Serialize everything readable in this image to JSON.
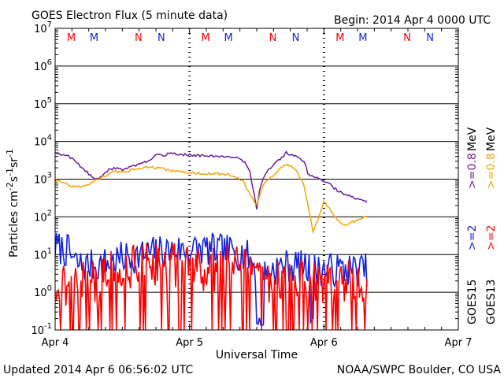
{
  "header": {
    "title": "GOES Electron Flux (5 minute data)",
    "begin": "Begin: 2014 Apr 4 0000 UTC"
  },
  "footer": {
    "updated": "Updated 2014 Apr  6 06:56:02 UTC",
    "credit": "NOAA/SWPC Boulder, CO USA"
  },
  "colors": {
    "purple": "#6a1b9a",
    "orange": "#f5a300",
    "blue": "#1020e0",
    "red": "#ff0000",
    "grid": "#000000"
  },
  "chart_data": {
    "type": "line",
    "title": "GOES Electron Flux (5 minute data)",
    "xlabel": "Universal Time",
    "ylabel_parts": {
      "base": "Particles cm",
      "exp1": "-2",
      "mid1": "s",
      "exp2": "-1",
      "mid2": "sr",
      "exp3": "-1"
    },
    "x_unit": "days since 2014 Apr 4 0000 UTC",
    "xlim": [
      0,
      3
    ],
    "ylim": [
      0.1,
      10000000
    ],
    "log_y": true,
    "x_ticks": [
      {
        "x": 0,
        "label": "Apr 4"
      },
      {
        "x": 1,
        "label": "Apr 5"
      },
      {
        "x": 2,
        "label": "Apr 6"
      },
      {
        "x": 3,
        "label": "Apr 7"
      }
    ],
    "y_ticks": [
      {
        "exp": -1,
        "base": "10",
        "sup": "-1"
      },
      {
        "exp": 0,
        "base": "10",
        "sup": "0"
      },
      {
        "exp": 1,
        "base": "10",
        "sup": "1"
      },
      {
        "exp": 2,
        "base": "10",
        "sup": "2"
      },
      {
        "exp": 3,
        "base": "10",
        "sup": "3"
      },
      {
        "exp": 4,
        "base": "10",
        "sup": "4"
      },
      {
        "exp": 5,
        "base": "10",
        "sup": "5"
      },
      {
        "exp": 6,
        "base": "10",
        "sup": "6"
      },
      {
        "exp": 7,
        "base": "10",
        "sup": "7"
      }
    ],
    "threshold_line": 1000,
    "markers": [
      {
        "x": 0.12,
        "label": "M",
        "color": "#ff0000"
      },
      {
        "x": 0.29,
        "label": "M",
        "color": "#1020e0"
      },
      {
        "x": 0.62,
        "label": "N",
        "color": "#ff0000"
      },
      {
        "x": 0.79,
        "label": "N",
        "color": "#1020e0"
      },
      {
        "x": 1.12,
        "label": "M",
        "color": "#ff0000"
      },
      {
        "x": 1.29,
        "label": "M",
        "color": "#1020e0"
      },
      {
        "x": 1.62,
        "label": "N",
        "color": "#ff0000"
      },
      {
        "x": 1.79,
        "label": "N",
        "color": "#1020e0"
      },
      {
        "x": 2.12,
        "label": "M",
        "color": "#ff0000"
      },
      {
        "x": 2.29,
        "label": "M",
        "color": "#1020e0"
      },
      {
        "x": 2.62,
        "label": "N",
        "color": "#ff0000"
      },
      {
        "x": 2.79,
        "label": "N",
        "color": "#1020e0"
      }
    ],
    "legend": [
      {
        "sat": "GOES13",
        "ge2": ">=2",
        "ge08": ">=0.8",
        "unit": "MeV",
        "ge2_color": "#ff0000",
        "ge08_color": "#f5a300"
      },
      {
        "sat": "GOES15",
        "ge2": ">=2",
        "ge08": ">=0.8",
        "unit": "MeV",
        "ge2_color": "#1020e0",
        "ge08_color": "#6a1b9a"
      }
    ],
    "series": [
      {
        "name": "GOES15 >=0.8 MeV",
        "color": "#6a1b9a",
        "style": "line",
        "x": [
          0,
          0.05,
          0.1,
          0.15,
          0.2,
          0.25,
          0.3,
          0.35,
          0.4,
          0.45,
          0.5,
          0.55,
          0.6,
          0.7,
          0.75,
          0.8,
          0.85,
          0.9,
          1.0,
          1.1,
          1.2,
          1.3,
          1.35,
          1.4,
          1.42,
          1.45,
          1.48,
          1.5,
          1.52,
          1.55,
          1.6,
          1.65,
          1.7,
          1.72,
          1.75,
          1.8,
          1.85,
          1.88,
          1.9,
          1.95,
          2.0,
          2.05,
          2.1,
          2.15,
          2.2,
          2.25,
          2.3,
          2.32
        ],
        "y": [
          5000,
          4500,
          4000,
          3000,
          2000,
          1400,
          1000,
          1200,
          1800,
          2000,
          1800,
          2000,
          2300,
          3000,
          4500,
          4200,
          4800,
          4600,
          4400,
          4200,
          4000,
          3800,
          3700,
          3000,
          2500,
          1500,
          400,
          150,
          500,
          1100,
          2000,
          3000,
          4000,
          5000,
          4500,
          3800,
          3000,
          1500,
          1200,
          1100,
          900,
          700,
          500,
          400,
          350,
          300,
          260,
          240
        ]
      },
      {
        "name": "GOES13 >=0.8 MeV",
        "color": "#f5a300",
        "style": "line",
        "x": [
          0,
          0.05,
          0.1,
          0.15,
          0.2,
          0.25,
          0.3,
          0.35,
          0.4,
          0.45,
          0.5,
          0.55,
          0.6,
          0.7,
          0.75,
          0.8,
          0.85,
          0.9,
          1.0,
          1.1,
          1.2,
          1.3,
          1.35,
          1.4,
          1.42,
          1.45,
          1.48,
          1.5,
          1.52,
          1.55,
          1.6,
          1.65,
          1.7,
          1.72,
          1.75,
          1.8,
          1.85,
          1.88,
          1.9,
          1.92,
          1.95,
          2.0,
          2.05,
          2.1,
          2.15,
          2.2,
          2.25,
          2.3,
          2.32
        ],
        "y": [
          1000,
          800,
          700,
          600,
          650,
          750,
          900,
          1100,
          1400,
          1600,
          1500,
          1700,
          1900,
          2100,
          2000,
          1900,
          1700,
          1600,
          1500,
          1400,
          1400,
          1300,
          1100,
          900,
          600,
          400,
          250,
          200,
          350,
          700,
          1100,
          1600,
          2200,
          2500,
          2200,
          1600,
          700,
          200,
          100,
          40,
          80,
          250,
          150,
          80,
          60,
          70,
          80,
          95,
          100
        ]
      },
      {
        "name": "GOES15 >=2 MeV",
        "color": "#1020e0",
        "style": "noisy",
        "x_start": 0,
        "x_end": 2.32,
        "step": 0.01,
        "seed": 7,
        "envelope_x": [
          0,
          0.1,
          0.15,
          0.2,
          0.3,
          0.4,
          0.5,
          0.6,
          0.7,
          0.8,
          0.9,
          1.0,
          1.1,
          1.2,
          1.3,
          1.4,
          1.45,
          1.5,
          1.55,
          1.6,
          1.7,
          1.8,
          1.9,
          2.0,
          2.1,
          2.2,
          2.32
        ],
        "envelope_y": [
          16,
          12,
          6,
          5,
          5,
          6,
          8,
          9,
          11,
          12,
          13,
          13,
          14,
          13,
          12,
          10,
          8,
          4,
          3,
          4,
          5,
          5,
          4,
          4,
          4,
          4,
          4
        ],
        "noise": 0.45,
        "dropouts": [
          {
            "from": 1.5,
            "to": 1.56,
            "to_value": 0.12
          },
          {
            "from": 1.9,
            "to": 1.93,
            "to_value": 0.12
          }
        ]
      },
      {
        "name": "GOES13 >=2 MeV",
        "color": "#ff0000",
        "style": "noisy",
        "x_start": 0,
        "x_end": 2.32,
        "step": 0.008,
        "seed": 21,
        "envelope_x": [
          0,
          0.1,
          0.2,
          0.3,
          0.4,
          0.5,
          0.6,
          0.7,
          0.8,
          0.9,
          1.0,
          1.1,
          1.2,
          1.3,
          1.4,
          1.5,
          1.6,
          1.7,
          1.8,
          1.9,
          2.0,
          2.1,
          2.2,
          2.32
        ],
        "envelope_y": [
          1.5,
          1.6,
          1.8,
          2,
          3,
          4,
          5,
          6,
          6,
          5,
          5,
          4,
          4,
          5,
          4,
          3,
          2,
          2,
          2,
          2,
          2,
          2,
          2,
          2
        ],
        "noise": 0.6,
        "drop_probability": 0.18,
        "drop_value": 0.1
      }
    ]
  }
}
